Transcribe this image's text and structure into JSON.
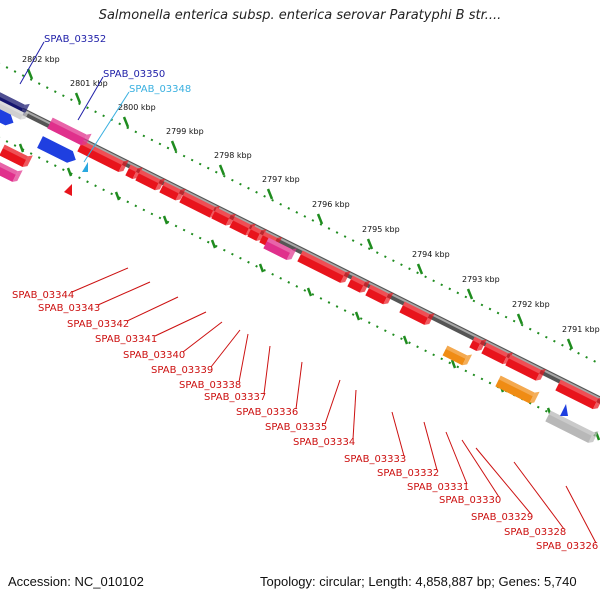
{
  "title": "Salmonella enterica subsp. enterica serovar Paratyphi B str....",
  "footer": {
    "accession": "Accession: NC_010102",
    "topology": "Topology: circular; Length: 4,858,887 bp; Genes: 5,740"
  },
  "scale": [
    "2802 kbp",
    "2801 kbp",
    "2800 kbp",
    "2799 kbp",
    "2798 kbp",
    "2797 kbp",
    "2796 kbp",
    "2795 kbp",
    "2794 kbp",
    "2793 kbp",
    "2792 kbp",
    "2791 kbp"
  ],
  "top_labels": [
    {
      "text": "SPAB_03352",
      "color": "#1f1fa8"
    },
    {
      "text": "SPAB_03350",
      "color": "#1f1fa8"
    },
    {
      "text": "SPAB_03348",
      "color": "#3ab0e0"
    }
  ],
  "bottom_labels": [
    "SPAB_03344",
    "SPAB_03343",
    "SPAB_03342",
    "SPAB_03341",
    "SPAB_03340",
    "SPAB_03339",
    "SPAB_03338",
    "SPAB_03337",
    "SPAB_03336",
    "SPAB_03335",
    "SPAB_03334",
    "SPAB_03333",
    "SPAB_03332",
    "SPAB_03331",
    "SPAB_03330",
    "SPAB_03329",
    "SPAB_03328",
    "SPAB_03326"
  ],
  "colors": {
    "red_gene": "#e8141c",
    "blue_gene": "#1f3fe0",
    "navy_gene": "#14146e",
    "pink_gene": "#e0308c",
    "orange_gene": "#f08c14",
    "grey_gene": "#b8b8b8",
    "backbone": "#808080",
    "tick": "#1f8c1f",
    "label_red": "#cc1010"
  }
}
